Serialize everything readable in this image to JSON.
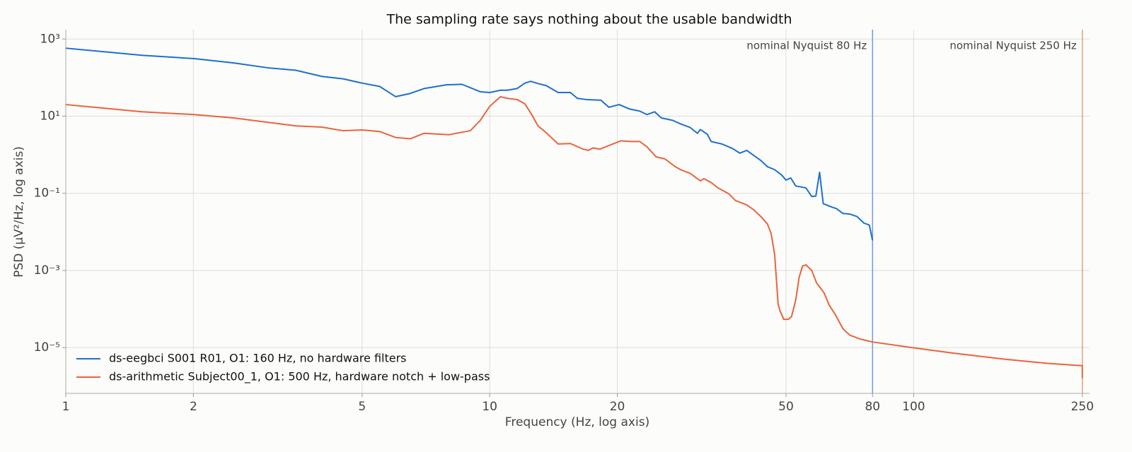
{
  "chart_data": {
    "type": "line",
    "title": "The sampling rate says nothing about the usable bandwidth",
    "x_label": "Frequency (Hz, log axis)",
    "y_label": "PSD (µV²/Hz, log axis)",
    "x_scale": "log",
    "y_scale": "log",
    "grid": true,
    "legend_position": "lower left",
    "xlim": [
      1,
      260
    ],
    "ylim": [
      6.5e-07,
      1750
    ],
    "xticks": [
      1,
      2,
      5,
      10,
      20,
      50,
      80,
      100,
      250
    ],
    "yticks": [
      {
        "value": 1000,
        "label": "10³"
      },
      {
        "value": 10,
        "label": "10¹"
      },
      {
        "value": 0.1,
        "label": "10⁻¹"
      },
      {
        "value": 0.001,
        "label": "10⁻³"
      },
      {
        "value": 1e-05,
        "label": "10⁻⁵"
      }
    ],
    "vlines": [
      {
        "x": 80,
        "label": "nominal Nyquist 80 Hz",
        "color": "#6f9be0"
      },
      {
        "x": 250,
        "label": "nominal Nyquist 250 Hz",
        "color": "#eb9c80"
      }
    ],
    "series": [
      {
        "name": "ds-eegbci S001 R01, O1: 160 Hz, no hardware filters",
        "color": "#1f6fd1",
        "x": [
          1,
          1.51,
          2.01,
          2.49,
          2.99,
          3.49,
          4.02,
          4.51,
          5.0,
          5.5,
          6.0,
          6.5,
          7.0,
          7.9,
          8.6,
          9.5,
          10,
          10.6,
          11.0,
          11.6,
          12.1,
          12.5,
          13.0,
          13.6,
          14.5,
          15.5,
          16.1,
          16.9,
          18.3,
          19.1,
          20.2,
          21.3,
          22.6,
          23.5,
          24.5,
          25.4,
          27,
          28.2,
          29.7,
          30.9,
          31.4,
          32.6,
          33.3,
          35.3,
          37.4,
          38.9,
          40.4,
          42,
          43.6,
          45.2,
          47.0,
          48.8,
          50,
          51.3,
          52.7,
          55.7,
          57.5,
          58.8,
          60.0,
          61.2,
          64.1,
          65.8,
          68.1,
          70.7,
          73.5,
          76.3,
          78.6,
          80
        ],
        "values": [
          580,
          380,
          310,
          240,
          180,
          155,
          107,
          93,
          72,
          59,
          32,
          39,
          52,
          65,
          67,
          43,
          41,
          47,
          47,
          52,
          72,
          80,
          70,
          62,
          41,
          41,
          29,
          27,
          26,
          17,
          20,
          15.5,
          13.5,
          11,
          13,
          9,
          7.8,
          6.3,
          5.1,
          3.6,
          4.5,
          3.4,
          2.2,
          1.9,
          1.45,
          1.1,
          1.3,
          0.95,
          0.71,
          0.49,
          0.41,
          0.3,
          0.22,
          0.25,
          0.155,
          0.138,
          0.083,
          0.085,
          0.35,
          0.054,
          0.044,
          0.04,
          0.03,
          0.029,
          0.025,
          0.017,
          0.015,
          0.006
        ]
      },
      {
        "name": "ds-arithmetic Subject00_1, O1: 500 Hz, hardware notch + low-pass",
        "color": "#e8643c",
        "x": [
          1,
          1.51,
          2.01,
          2.49,
          3.49,
          4.02,
          4.51,
          5.0,
          5.5,
          6.0,
          6.5,
          7.0,
          8.0,
          9.0,
          9.5,
          10,
          10.6,
          11.0,
          11.6,
          12.1,
          12.5,
          13.0,
          13.6,
          14.5,
          15.5,
          16.6,
          17.1,
          17.5,
          18.2,
          20.4,
          21.6,
          22.6,
          23.5,
          24.7,
          25.9,
          27.4,
          28.2,
          29.7,
          31.4,
          32.0,
          33.3,
          34.5,
          36.6,
          38.0,
          40.4,
          42.0,
          43.6,
          45.2,
          46.1,
          47.0,
          47.9,
          48.4,
          49.4,
          50.6,
          51.5,
          52.7,
          53.7,
          54.7,
          55.7,
          57.5,
          59.0,
          61.5,
          63.2,
          65.3,
          68.1,
          70.7,
          74.9,
          80,
          99,
          125,
          164,
          207,
          250,
          250
        ],
        "values": [
          20,
          13,
          11,
          9,
          5.6,
          5.2,
          4.2,
          4.4,
          4.0,
          2.8,
          2.6,
          3.6,
          3.3,
          4.2,
          7.8,
          18,
          32,
          29,
          27,
          21,
          12,
          5.6,
          3.7,
          1.9,
          1.95,
          1.4,
          1.3,
          1.5,
          1.4,
          2.3,
          2.2,
          2.2,
          1.6,
          0.88,
          0.78,
          0.49,
          0.41,
          0.33,
          0.21,
          0.24,
          0.19,
          0.14,
          0.098,
          0.065,
          0.05,
          0.037,
          0.025,
          0.016,
          0.0092,
          0.0026,
          0.000135,
          8.9e-05,
          5.4e-05,
          5.4e-05,
          6.3e-05,
          0.00017,
          0.00067,
          0.0013,
          0.0014,
          0.001,
          0.00048,
          0.00026,
          0.000126,
          7.3e-05,
          3.1e-05,
          2.1e-05,
          1.66e-05,
          1.4e-05,
          1e-05,
          7.1e-06,
          5e-06,
          3.9e-06,
          3.4e-06,
          1.6e-06
        ]
      }
    ]
  }
}
